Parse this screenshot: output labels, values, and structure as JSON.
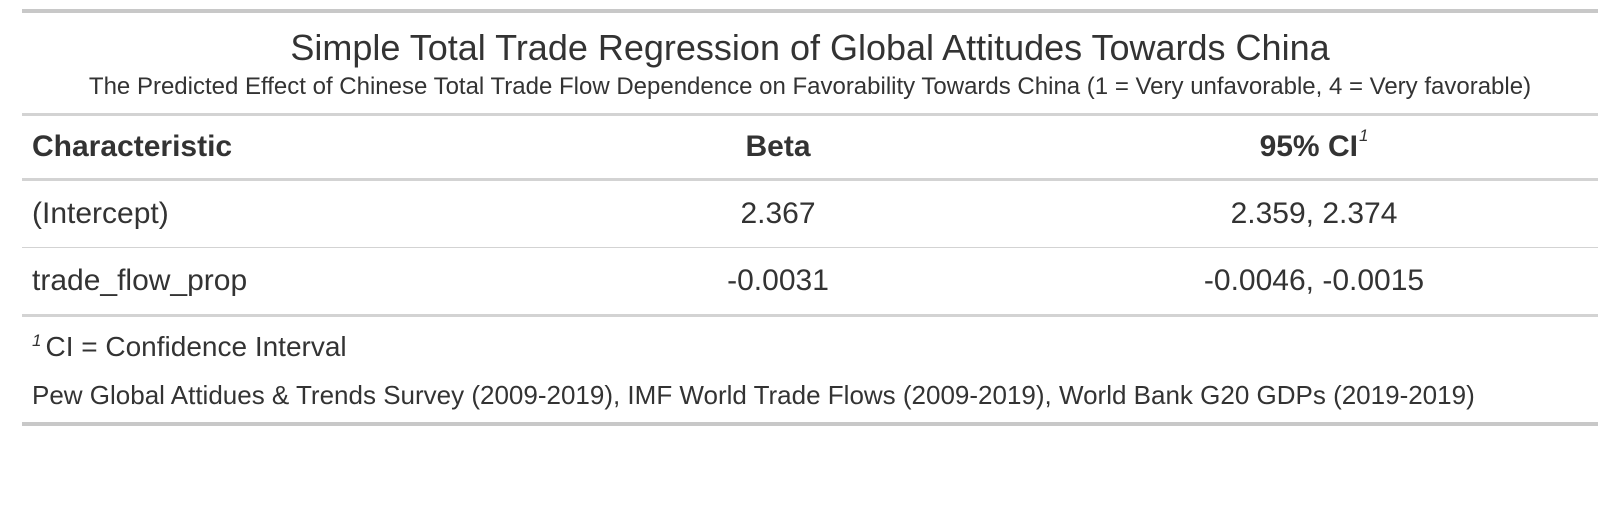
{
  "table": {
    "title": "Simple Total Trade Regression of Global Attitudes Towards China",
    "subtitle": "The Predicted Effect of Chinese Total Trade Flow Dependence on Favorability Towards China (1 = Very unfavorable, 4 = Very favorable)",
    "columns": {
      "characteristic": "Characteristic",
      "beta": "Beta",
      "ci": "95% CI",
      "ci_footnote_mark": "1"
    },
    "rows": [
      {
        "characteristic": "(Intercept)",
        "beta": "2.367",
        "ci": "2.359, 2.374"
      },
      {
        "characteristic": "trade_flow_prop",
        "beta": "-0.0031",
        "ci": "-0.0046, -0.0015"
      }
    ],
    "footnote": {
      "mark": "1",
      "text": "CI = Confidence Interval"
    },
    "source_note": "Pew Global Attidues & Trends Survey (2009-2019), IMF World Trade Flows (2009-2019), World Bank G20 GDPs (2019-2019)"
  }
}
